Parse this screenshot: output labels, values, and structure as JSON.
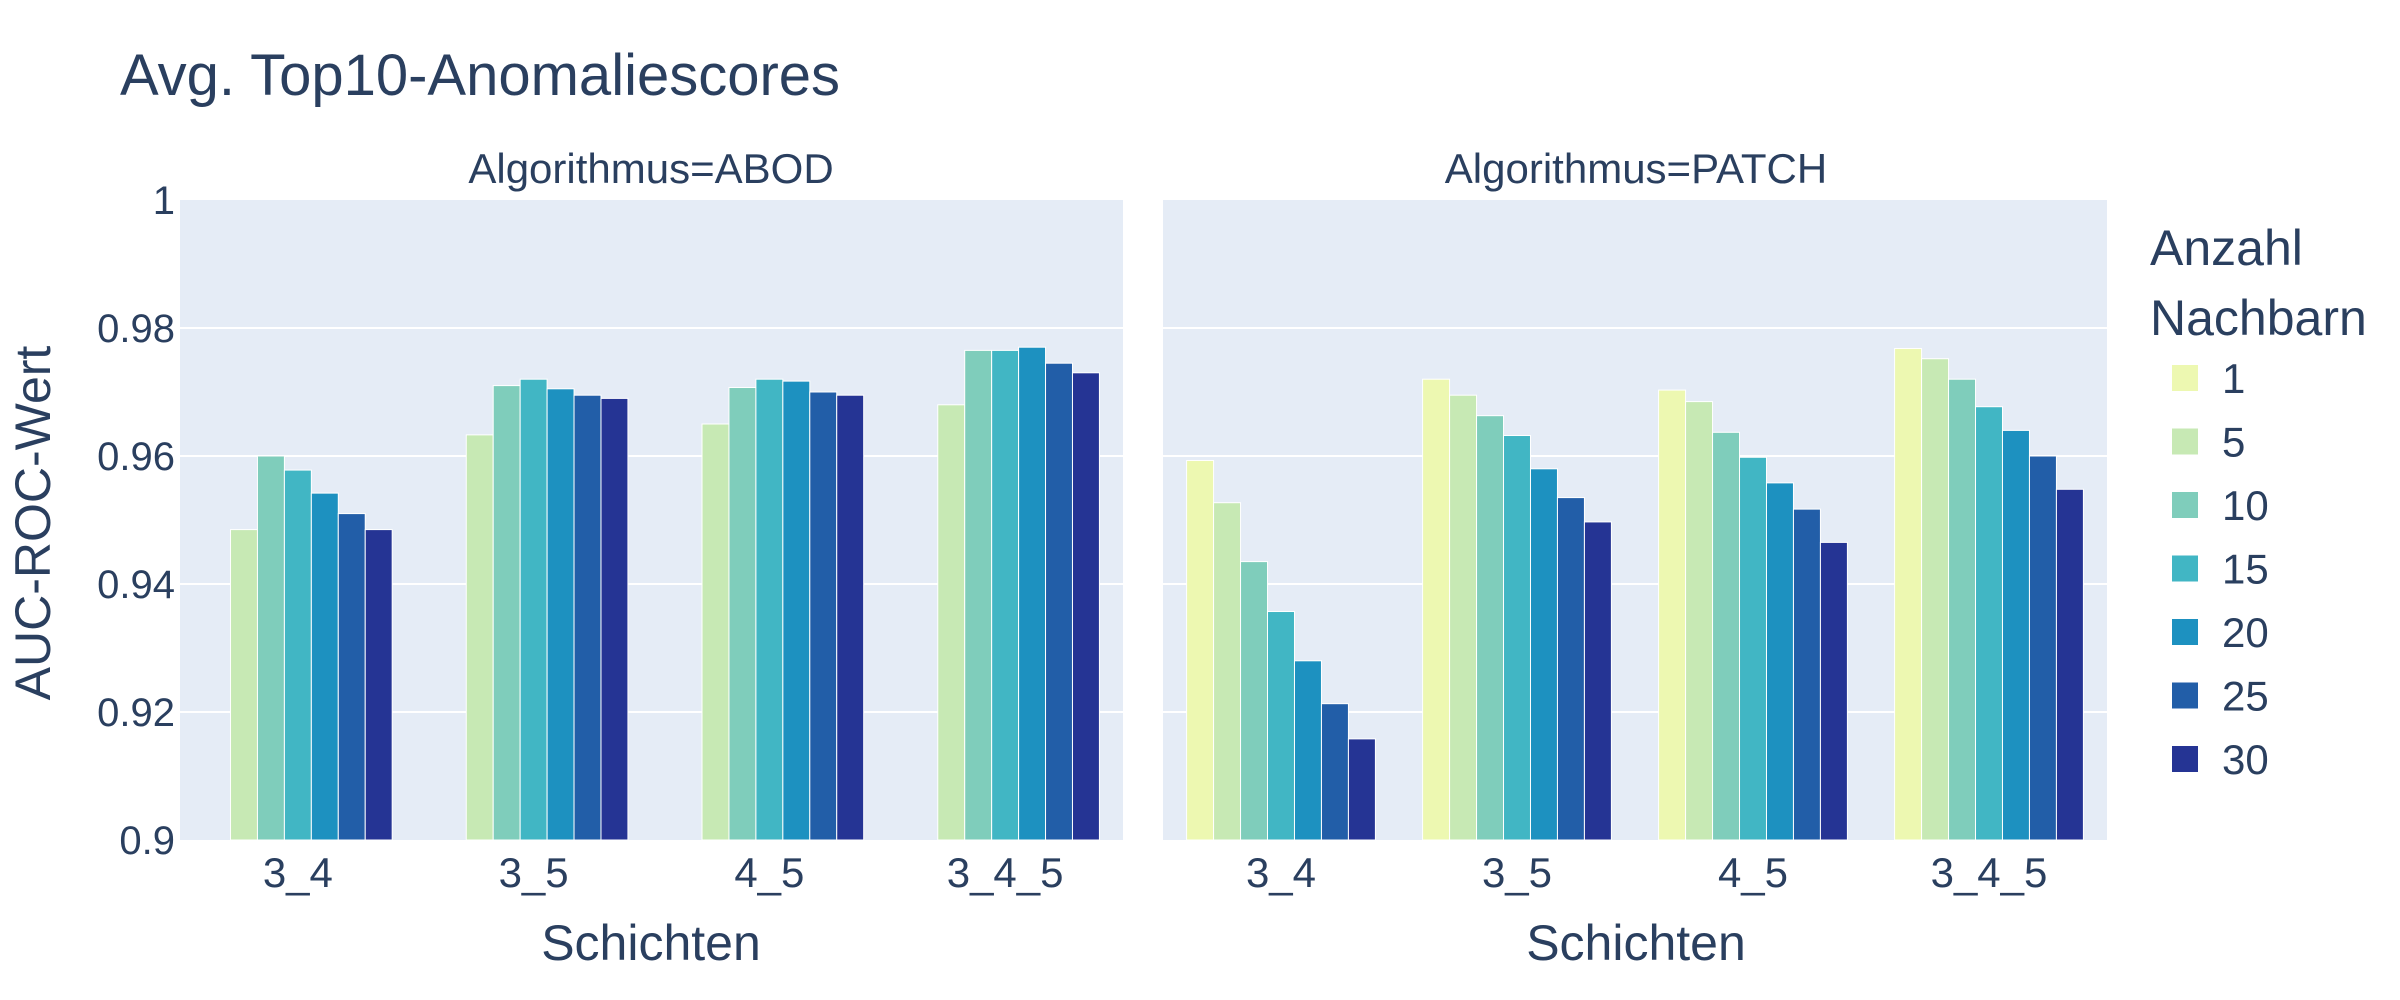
{
  "chart_data": {
    "type": "bar",
    "title": "Avg. Top10-Anomaliescores",
    "ylabel": "AUC-ROC-Wert",
    "xlabel": "Schichten",
    "ylim": [
      0.9,
      1.0
    ],
    "yticks": [
      "0.9",
      "0.92",
      "0.94",
      "0.96",
      "0.98",
      "1"
    ],
    "grid": true,
    "legend": {
      "title": [
        "Anzahl",
        "Nachbarn"
      ],
      "placement": "right",
      "entries": [
        "1",
        "5",
        "10",
        "15",
        "20",
        "25",
        "30"
      ],
      "colors": [
        "#edf8b1",
        "#c7e9b4",
        "#7fcdbb",
        "#41b6c4",
        "#1d91c0",
        "#225ea8",
        "#253494"
      ]
    },
    "categories": [
      "3_4",
      "3_5",
      "4_5",
      "3_4_5"
    ],
    "facets": [
      {
        "title": "Algorithmus=ABOD",
        "series": [
          {
            "name": "1",
            "values": [
              null,
              null,
              null,
              null
            ]
          },
          {
            "name": "5",
            "values": [
              0.9485,
              0.9633,
              0.965,
              0.968
            ]
          },
          {
            "name": "10",
            "values": [
              0.96,
              0.971,
              0.9707,
              0.9765
            ]
          },
          {
            "name": "15",
            "values": [
              0.9578,
              0.972,
              0.972,
              0.9765
            ]
          },
          {
            "name": "20",
            "values": [
              0.9542,
              0.9705,
              0.9717,
              0.977
            ]
          },
          {
            "name": "25",
            "values": [
              0.951,
              0.9695,
              0.97,
              0.9745
            ]
          },
          {
            "name": "30",
            "values": [
              0.9485,
              0.969,
              0.9695,
              0.973
            ]
          }
        ]
      },
      {
        "title": "Algorithmus=PATCH",
        "series": [
          {
            "name": "1",
            "values": [
              0.9593,
              0.972,
              0.9703,
              0.9768
            ]
          },
          {
            "name": "5",
            "values": [
              0.9527,
              0.9695,
              0.9685,
              0.9752
            ]
          },
          {
            "name": "10",
            "values": [
              0.9435,
              0.9663,
              0.9637,
              0.972
            ]
          },
          {
            "name": "15",
            "values": [
              0.9357,
              0.9632,
              0.9598,
              0.9677
            ]
          },
          {
            "name": "20",
            "values": [
              0.928,
              0.958,
              0.9558,
              0.964
            ]
          },
          {
            "name": "25",
            "values": [
              0.9213,
              0.9535,
              0.9517,
              0.96
            ]
          },
          {
            "name": "30",
            "values": [
              0.9158,
              0.9497,
              0.9465,
              0.9548
            ]
          }
        ]
      }
    ]
  }
}
